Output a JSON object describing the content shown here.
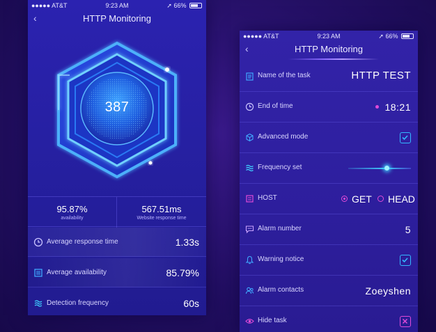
{
  "colors": {
    "background": "#230f63",
    "accent_cyan": "#33b8ff",
    "accent_pink": "#e04ad8",
    "card": "#2620a2"
  },
  "left_phone": {
    "status": {
      "carrier": "●●●●● AT&T",
      "time": "9:23 AM",
      "battery": "66%"
    },
    "nav": {
      "title": "HTTP Monitoring",
      "back_icon": "chevron-left-icon"
    },
    "hero": {
      "value": "387"
    },
    "stats": [
      {
        "value": "95.87%",
        "label": "availability"
      },
      {
        "value": "567.51ms",
        "label": "Website response time"
      }
    ],
    "metrics": [
      {
        "icon": "clock-icon",
        "label": "Average response time",
        "value": "1.33s"
      },
      {
        "icon": "list-icon",
        "label": "Average availability",
        "value": "85.79%"
      },
      {
        "icon": "frequency-icon",
        "label": "Detection frequency",
        "value": "60s"
      }
    ]
  },
  "right_phone": {
    "status": {
      "carrier": "●●●●● AT&T",
      "time": "9:23 AM",
      "battery": "66%"
    },
    "nav": {
      "title": "HTTP Monitoring",
      "back_icon": "chevron-left-icon"
    },
    "settings": {
      "task_name": {
        "icon": "clipboard-icon",
        "label": "Name of the task",
        "value": "HTTP TEST"
      },
      "end_time": {
        "icon": "clock-icon",
        "label": "End of time",
        "value": "18:21"
      },
      "advanced": {
        "icon": "cube-icon",
        "label": "Advanced mode",
        "checked": true
      },
      "frequency": {
        "icon": "frequency-icon",
        "label": "Frequency set",
        "level": 0.6
      },
      "host": {
        "icon": "host-icon",
        "label": "HOST",
        "options": [
          "GET",
          "HEAD"
        ],
        "selected": "GET"
      },
      "alarm_number": {
        "icon": "chat-icon",
        "label": "Alarm number",
        "value": "5"
      },
      "warning": {
        "icon": "bell-icon",
        "label": "Warning notice",
        "checked": true
      },
      "contacts": {
        "icon": "contacts-icon",
        "label": "Alarm contacts",
        "value": "Zoeyshen"
      },
      "hide_task": {
        "icon": "eye-icon",
        "label": "Hide task",
        "checked": true
      }
    }
  }
}
